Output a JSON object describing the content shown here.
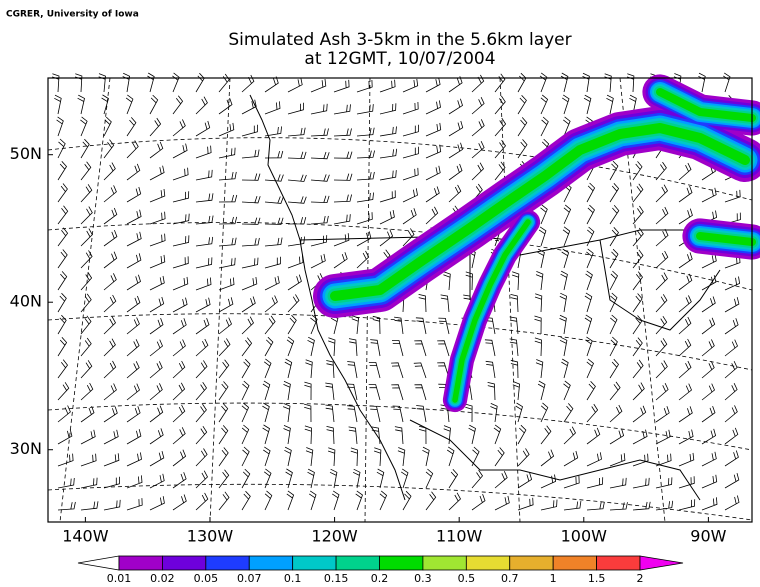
{
  "credit": "CGRER, University of Iowa",
  "title": [
    "Simulated Ash  3-5km in the 5.6km layer",
    "at 12GMT, 10/07/2004"
  ],
  "map": {
    "xlim": [
      -143,
      -86.5
    ],
    "ylim": [
      25.1,
      55.2
    ],
    "xticks": [
      {
        "value": -140,
        "label": "140W"
      },
      {
        "value": -130,
        "label": "130W"
      },
      {
        "value": -120,
        "label": "120W"
      },
      {
        "value": -110,
        "label": "110W"
      },
      {
        "value": -100,
        "label": "100W"
      },
      {
        "value": -90,
        "label": "90W"
      }
    ],
    "yticks": [
      {
        "value": 30,
        "label": "30N"
      },
      {
        "value": 40,
        "label": "40N"
      },
      {
        "value": 50,
        "label": "50N"
      }
    ]
  },
  "colorbar": {
    "levels": [
      0.01,
      0.02,
      0.05,
      0.07,
      0.1,
      0.15,
      0.2,
      0.3,
      0.5,
      0.7,
      1,
      1.5,
      2
    ],
    "colors": [
      "#ffffff",
      "#a000c8",
      "#6e00dc",
      "#1e3cff",
      "#00a0ff",
      "#00c8c8",
      "#00d28c",
      "#00dc00",
      "#a0e632",
      "#e6dc32",
      "#e6af2d",
      "#f08228",
      "#fa3c3c",
      "#f000f0"
    ]
  }
}
